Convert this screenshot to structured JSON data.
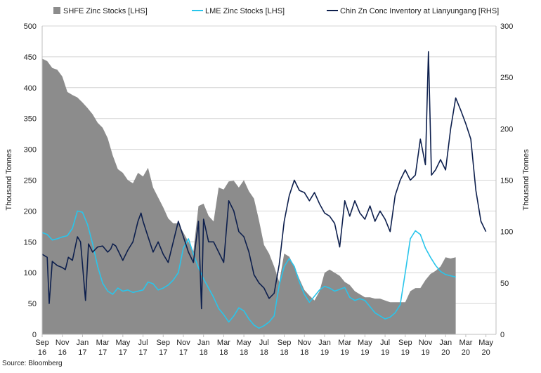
{
  "chart_data": {
    "type": "area",
    "title": "",
    "source": "Source: Bloomberg",
    "ylabel_left": "Thousand Tonnes",
    "ylabel_right": "Thousand Tonnes",
    "ylim_left": [
      0,
      500
    ],
    "ylim_right": [
      0,
      300
    ],
    "yticks_left": [
      "0",
      "50",
      "100",
      "150",
      "200",
      "250",
      "300",
      "350",
      "400",
      "450",
      "500"
    ],
    "yticks_right": [
      "0",
      "50",
      "100",
      "150",
      "200",
      "250",
      "300"
    ],
    "x_tick_labels": [
      [
        "Sep",
        "16"
      ],
      [
        "Nov",
        "16"
      ],
      [
        "Jan",
        "17"
      ],
      [
        "Mar",
        "17"
      ],
      [
        "May",
        "17"
      ],
      [
        "Jul",
        "17"
      ],
      [
        "Sep",
        "17"
      ],
      [
        "Nov",
        "17"
      ],
      [
        "Jan",
        "18"
      ],
      [
        "Mar",
        "18"
      ],
      [
        "May",
        "18"
      ],
      [
        "Jul",
        "18"
      ],
      [
        "Sep",
        "18"
      ],
      [
        "Nov",
        "18"
      ],
      [
        "Jan",
        "19"
      ],
      [
        "Mar",
        "19"
      ],
      [
        "May",
        "19"
      ],
      [
        "Jul",
        "19"
      ],
      [
        "Sep",
        "19"
      ],
      [
        "Nov",
        "19"
      ],
      [
        "Jan",
        "20"
      ],
      [
        "Mar",
        "20"
      ],
      [
        "May",
        "20"
      ]
    ],
    "x_range_months": [
      0,
      45
    ],
    "grid": true,
    "legend_position": "top",
    "colors": {
      "shfe": "#8c8c8c",
      "lme": "#29c5eb",
      "chin": "#0d1f4d",
      "grid": "#d4d4d4",
      "axis": "#bfbfbf"
    },
    "series": [
      {
        "name": "SHFE Zinc Stocks [LHS]",
        "kind": "area",
        "axis": "left",
        "points": [
          [
            0,
            447
          ],
          [
            0.5,
            443
          ],
          [
            1,
            432
          ],
          [
            1.5,
            429
          ],
          [
            2,
            418
          ],
          [
            2.5,
            393
          ],
          [
            3,
            388
          ],
          [
            3.5,
            384
          ],
          [
            4,
            376
          ],
          [
            4.5,
            367
          ],
          [
            5,
            357
          ],
          [
            5.5,
            343
          ],
          [
            6,
            335
          ],
          [
            6.5,
            318
          ],
          [
            7,
            290
          ],
          [
            7.5,
            268
          ],
          [
            8,
            262
          ],
          [
            8.5,
            250
          ],
          [
            9,
            245
          ],
          [
            9.5,
            262
          ],
          [
            10,
            256
          ],
          [
            10.5,
            270
          ],
          [
            11,
            238
          ],
          [
            11.5,
            222
          ],
          [
            12,
            206
          ],
          [
            12.5,
            188
          ],
          [
            13,
            180
          ],
          [
            13.5,
            180
          ],
          [
            14,
            165
          ],
          [
            14.5,
            150
          ],
          [
            15,
            135
          ],
          [
            15.5,
            208
          ],
          [
            16,
            212
          ],
          [
            16.5,
            192
          ],
          [
            17,
            183
          ],
          [
            17.5,
            238
          ],
          [
            18,
            235
          ],
          [
            18.5,
            248
          ],
          [
            19,
            249
          ],
          [
            19.5,
            238
          ],
          [
            20,
            250
          ],
          [
            20.5,
            232
          ],
          [
            21,
            220
          ],
          [
            21.5,
            185
          ],
          [
            22,
            145
          ],
          [
            22.5,
            131
          ],
          [
            23,
            110
          ],
          [
            23.5,
            85
          ],
          [
            24,
            131
          ],
          [
            24.5,
            126
          ],
          [
            25,
            110
          ],
          [
            25.5,
            90
          ],
          [
            26,
            72
          ],
          [
            26.5,
            63
          ],
          [
            27,
            55
          ],
          [
            27.5,
            70
          ],
          [
            28,
            100
          ],
          [
            28.5,
            105
          ],
          [
            29,
            100
          ],
          [
            29.5,
            95
          ],
          [
            30,
            85
          ],
          [
            30.5,
            80
          ],
          [
            31,
            70
          ],
          [
            31.5,
            65
          ],
          [
            32,
            60
          ],
          [
            32.5,
            60
          ],
          [
            33,
            58
          ],
          [
            33.5,
            58
          ],
          [
            34,
            55
          ],
          [
            34.5,
            52
          ],
          [
            35,
            52
          ],
          [
            35.5,
            52
          ],
          [
            36,
            52
          ],
          [
            36.5,
            70
          ],
          [
            37,
            75
          ],
          [
            37.5,
            75
          ],
          [
            38,
            88
          ],
          [
            38.5,
            98
          ],
          [
            39,
            103
          ],
          [
            39.5,
            110
          ],
          [
            40,
            125
          ],
          [
            40.5,
            123
          ],
          [
            41,
            125
          ]
        ]
      },
      {
        "name": "LME Zinc Stocks [LHS]",
        "kind": "line",
        "axis": "left",
        "points": [
          [
            0,
            165
          ],
          [
            0.5,
            162
          ],
          [
            1,
            153
          ],
          [
            1.5,
            155
          ],
          [
            2,
            158
          ],
          [
            2.5,
            160
          ],
          [
            3,
            172
          ],
          [
            3.5,
            200
          ],
          [
            4,
            198
          ],
          [
            4.5,
            178
          ],
          [
            5,
            147
          ],
          [
            5.5,
            110
          ],
          [
            6,
            83
          ],
          [
            6.5,
            70
          ],
          [
            7,
            65
          ],
          [
            7.5,
            75
          ],
          [
            8,
            70
          ],
          [
            8.5,
            72
          ],
          [
            9,
            68
          ],
          [
            9.5,
            70
          ],
          [
            10,
            72
          ],
          [
            10.5,
            85
          ],
          [
            11,
            82
          ],
          [
            11.5,
            72
          ],
          [
            12,
            75
          ],
          [
            12.5,
            80
          ],
          [
            13,
            88
          ],
          [
            13.5,
            100
          ],
          [
            14,
            140
          ],
          [
            14.5,
            155
          ],
          [
            15,
            130
          ],
          [
            15.5,
            108
          ],
          [
            16,
            90
          ],
          [
            16.5,
            75
          ],
          [
            17,
            60
          ],
          [
            17.5,
            42
          ],
          [
            18,
            32
          ],
          [
            18.5,
            20
          ],
          [
            19,
            30
          ],
          [
            19.5,
            43
          ],
          [
            20,
            38
          ],
          [
            20.5,
            25
          ],
          [
            21,
            15
          ],
          [
            21.5,
            10
          ],
          [
            22,
            14
          ],
          [
            22.5,
            20
          ],
          [
            23,
            30
          ],
          [
            23.5,
            80
          ],
          [
            24,
            110
          ],
          [
            24.5,
            123
          ],
          [
            25,
            110
          ],
          [
            25.5,
            85
          ],
          [
            26,
            65
          ],
          [
            26.5,
            52
          ],
          [
            27,
            62
          ],
          [
            27.5,
            72
          ],
          [
            28,
            78
          ],
          [
            28.5,
            75
          ],
          [
            29,
            70
          ],
          [
            29.5,
            73
          ],
          [
            30,
            76
          ],
          [
            30.5,
            60
          ],
          [
            31,
            55
          ],
          [
            31.5,
            58
          ],
          [
            32,
            55
          ],
          [
            32.5,
            45
          ],
          [
            33,
            35
          ],
          [
            33.5,
            30
          ],
          [
            34,
            25
          ],
          [
            34.5,
            28
          ],
          [
            35,
            35
          ],
          [
            35.5,
            48
          ],
          [
            36,
            100
          ],
          [
            36.5,
            155
          ],
          [
            37,
            168
          ],
          [
            37.5,
            162
          ],
          [
            38,
            140
          ],
          [
            38.5,
            125
          ],
          [
            39,
            112
          ],
          [
            39.5,
            102
          ],
          [
            40,
            97
          ],
          [
            40.5,
            95
          ],
          [
            41,
            93
          ]
        ]
      },
      {
        "name": "Chin Zn Conc Inventory at Lianyungang [RHS]",
        "kind": "line",
        "axis": "right",
        "points": [
          [
            0,
            78
          ],
          [
            0.5,
            75
          ],
          [
            0.7,
            30
          ],
          [
            1,
            71
          ],
          [
            1.5,
            67
          ],
          [
            2,
            65
          ],
          [
            2.3,
            63
          ],
          [
            2.6,
            75
          ],
          [
            3,
            72
          ],
          [
            3.5,
            95
          ],
          [
            3.8,
            90
          ],
          [
            4,
            68
          ],
          [
            4.3,
            33
          ],
          [
            4.6,
            88
          ],
          [
            5,
            80
          ],
          [
            5.5,
            85
          ],
          [
            6,
            86
          ],
          [
            6.5,
            80
          ],
          [
            6.8,
            83
          ],
          [
            7,
            88
          ],
          [
            7.3,
            86
          ],
          [
            7.6,
            80
          ],
          [
            8,
            72
          ],
          [
            8.5,
            82
          ],
          [
            9,
            90
          ],
          [
            9.5,
            110
          ],
          [
            9.8,
            118
          ],
          [
            10,
            110
          ],
          [
            10.5,
            95
          ],
          [
            11,
            80
          ],
          [
            11.5,
            90
          ],
          [
            12,
            78
          ],
          [
            12.5,
            70
          ],
          [
            13,
            90
          ],
          [
            13.5,
            110
          ],
          [
            14,
            95
          ],
          [
            14.5,
            80
          ],
          [
            15,
            70
          ],
          [
            15.5,
            110
          ],
          [
            15.8,
            25
          ],
          [
            16,
            112
          ],
          [
            16.5,
            90
          ],
          [
            17,
            90
          ],
          [
            17.5,
            80
          ],
          [
            18,
            70
          ],
          [
            18.5,
            130
          ],
          [
            19,
            120
          ],
          [
            19.5,
            100
          ],
          [
            20,
            95
          ],
          [
            20.5,
            80
          ],
          [
            21,
            58
          ],
          [
            21.5,
            50
          ],
          [
            22,
            45
          ],
          [
            22.5,
            35
          ],
          [
            23,
            40
          ],
          [
            23.5,
            68
          ],
          [
            24,
            110
          ],
          [
            24.5,
            135
          ],
          [
            25,
            150
          ],
          [
            25.5,
            140
          ],
          [
            26,
            138
          ],
          [
            26.5,
            130
          ],
          [
            27,
            138
          ],
          [
            27.5,
            127
          ],
          [
            28,
            118
          ],
          [
            28.5,
            115
          ],
          [
            29,
            108
          ],
          [
            29.5,
            85
          ],
          [
            30,
            130
          ],
          [
            30.5,
            115
          ],
          [
            31,
            130
          ],
          [
            31.5,
            118
          ],
          [
            32,
            112
          ],
          [
            32.5,
            125
          ],
          [
            33,
            110
          ],
          [
            33.5,
            120
          ],
          [
            34,
            112
          ],
          [
            34.5,
            100
          ],
          [
            35,
            135
          ],
          [
            35.5,
            150
          ],
          [
            36,
            160
          ],
          [
            36.5,
            150
          ],
          [
            37,
            155
          ],
          [
            37.5,
            190
          ],
          [
            38,
            165
          ],
          [
            38.3,
            275
          ],
          [
            38.6,
            155
          ],
          [
            39,
            160
          ],
          [
            39.5,
            170
          ],
          [
            40,
            160
          ],
          [
            40.5,
            200
          ],
          [
            41,
            230
          ],
          [
            41.5,
            218
          ],
          [
            42,
            205
          ],
          [
            42.5,
            190
          ],
          [
            43,
            140
          ],
          [
            43.5,
            110
          ],
          [
            44,
            100
          ]
        ]
      }
    ]
  }
}
